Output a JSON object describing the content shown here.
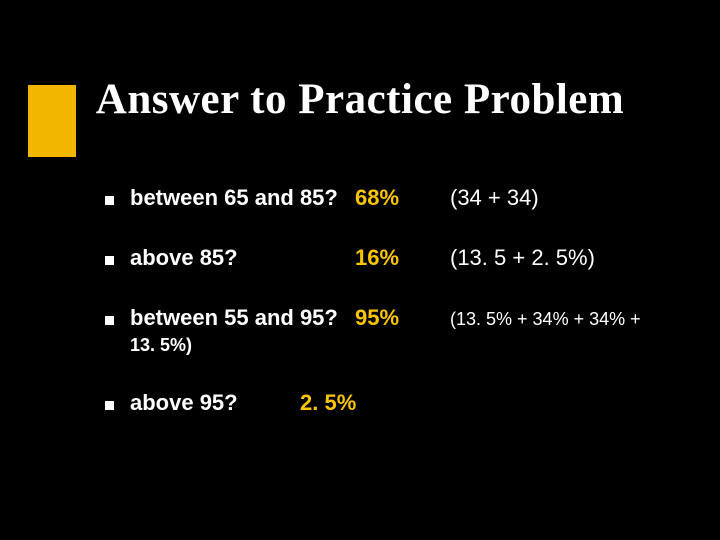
{
  "title": "Answer to Practice Problem",
  "rows": [
    {
      "question": "between 65 and 85?",
      "percent": "68%",
      "paren": "(34 + 34)"
    },
    {
      "question": "above 85?",
      "percent": "16%",
      "paren": "(13. 5 + 2. 5%)"
    },
    {
      "question": "between 55 and 95?",
      "percent": "95%",
      "paren": "(13. 5% + 34% + 34% +"
    }
  ],
  "continuation": "13. 5%)",
  "lastRow": {
    "question": "above 95?",
    "percent": "2. 5%"
  },
  "colors": {
    "background": "#000000",
    "accent": "#f2b500",
    "text": "#ffffff",
    "highlight": "#f8c500"
  }
}
